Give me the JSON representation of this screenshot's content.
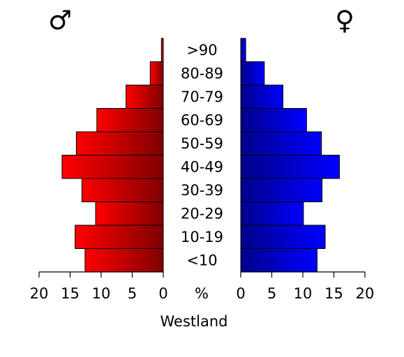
{
  "chart_data": {
    "type": "bar",
    "orientation": "horizontal-pyramid",
    "title": "",
    "xlabel": "Westland",
    "unit_label": "%",
    "categories": [
      "<10",
      "10-19",
      "20-29",
      "30-39",
      "40-49",
      "50-59",
      "60-69",
      "70-79",
      "80-89",
      ">90"
    ],
    "series": [
      {
        "name": "♂",
        "side": "left",
        "values": [
          12.6,
          14.2,
          10.9,
          13.1,
          16.3,
          14.0,
          10.7,
          6.0,
          2.1,
          0.3
        ],
        "gradient": [
          "#ff0000",
          "#800000"
        ]
      },
      {
        "name": "♀",
        "side": "right",
        "values": [
          12.3,
          13.6,
          10.1,
          13.1,
          15.9,
          13.0,
          10.6,
          6.8,
          3.8,
          0.8
        ],
        "gradient": [
          "#00008a",
          "#0000ff"
        ]
      }
    ],
    "xlim": [
      0,
      20
    ],
    "xticks": [
      "20",
      "15",
      "10",
      "5",
      "0",
      "0",
      "5",
      "10",
      "15",
      "20"
    ],
    "grid": false,
    "legend": "symbols at top"
  }
}
